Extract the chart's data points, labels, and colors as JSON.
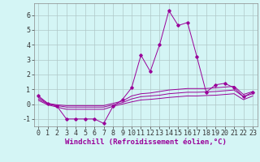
{
  "x": [
    0,
    1,
    2,
    3,
    4,
    5,
    6,
    7,
    8,
    9,
    10,
    11,
    12,
    13,
    14,
    15,
    16,
    17,
    18,
    19,
    20,
    21,
    22,
    23
  ],
  "line1": [
    0.55,
    0.05,
    -0.15,
    -1.0,
    -1.0,
    -1.0,
    -1.0,
    -1.3,
    -0.15,
    0.3,
    1.1,
    3.3,
    2.2,
    4.0,
    6.3,
    5.3,
    5.5,
    3.2,
    0.8,
    1.3,
    1.4,
    1.1,
    0.5,
    0.8
  ],
  "line2": [
    0.45,
    0.05,
    -0.05,
    -0.1,
    -0.1,
    -0.1,
    -0.1,
    -0.1,
    0.05,
    0.2,
    0.55,
    0.7,
    0.75,
    0.85,
    0.95,
    1.0,
    1.05,
    1.05,
    1.05,
    1.1,
    1.15,
    1.2,
    0.65,
    0.85
  ],
  "line3": [
    0.35,
    0.0,
    -0.1,
    -0.2,
    -0.2,
    -0.2,
    -0.2,
    -0.2,
    -0.05,
    0.1,
    0.35,
    0.5,
    0.55,
    0.6,
    0.7,
    0.75,
    0.8,
    0.8,
    0.82,
    0.85,
    0.9,
    0.95,
    0.5,
    0.7
  ],
  "line4": [
    0.25,
    -0.05,
    -0.2,
    -0.35,
    -0.35,
    -0.35,
    -0.35,
    -0.35,
    -0.15,
    0.0,
    0.15,
    0.28,
    0.32,
    0.38,
    0.45,
    0.5,
    0.55,
    0.55,
    0.58,
    0.6,
    0.65,
    0.7,
    0.3,
    0.55
  ],
  "color": "#990099",
  "bg_color": "#d4f5f5",
  "grid_color": "#b0c8c8",
  "xlabel": "Windchill (Refroidissement éolien,°C)",
  "ylim": [
    -1.5,
    6.8
  ],
  "xlim": [
    -0.5,
    23.5
  ],
  "xticks": [
    0,
    1,
    2,
    3,
    4,
    5,
    6,
    7,
    8,
    9,
    10,
    11,
    12,
    13,
    14,
    15,
    16,
    17,
    18,
    19,
    20,
    21,
    22,
    23
  ],
  "yticks": [
    -1,
    0,
    1,
    2,
    3,
    4,
    5,
    6
  ],
  "xlabel_fontsize": 6.5,
  "tick_fontsize": 6.0
}
